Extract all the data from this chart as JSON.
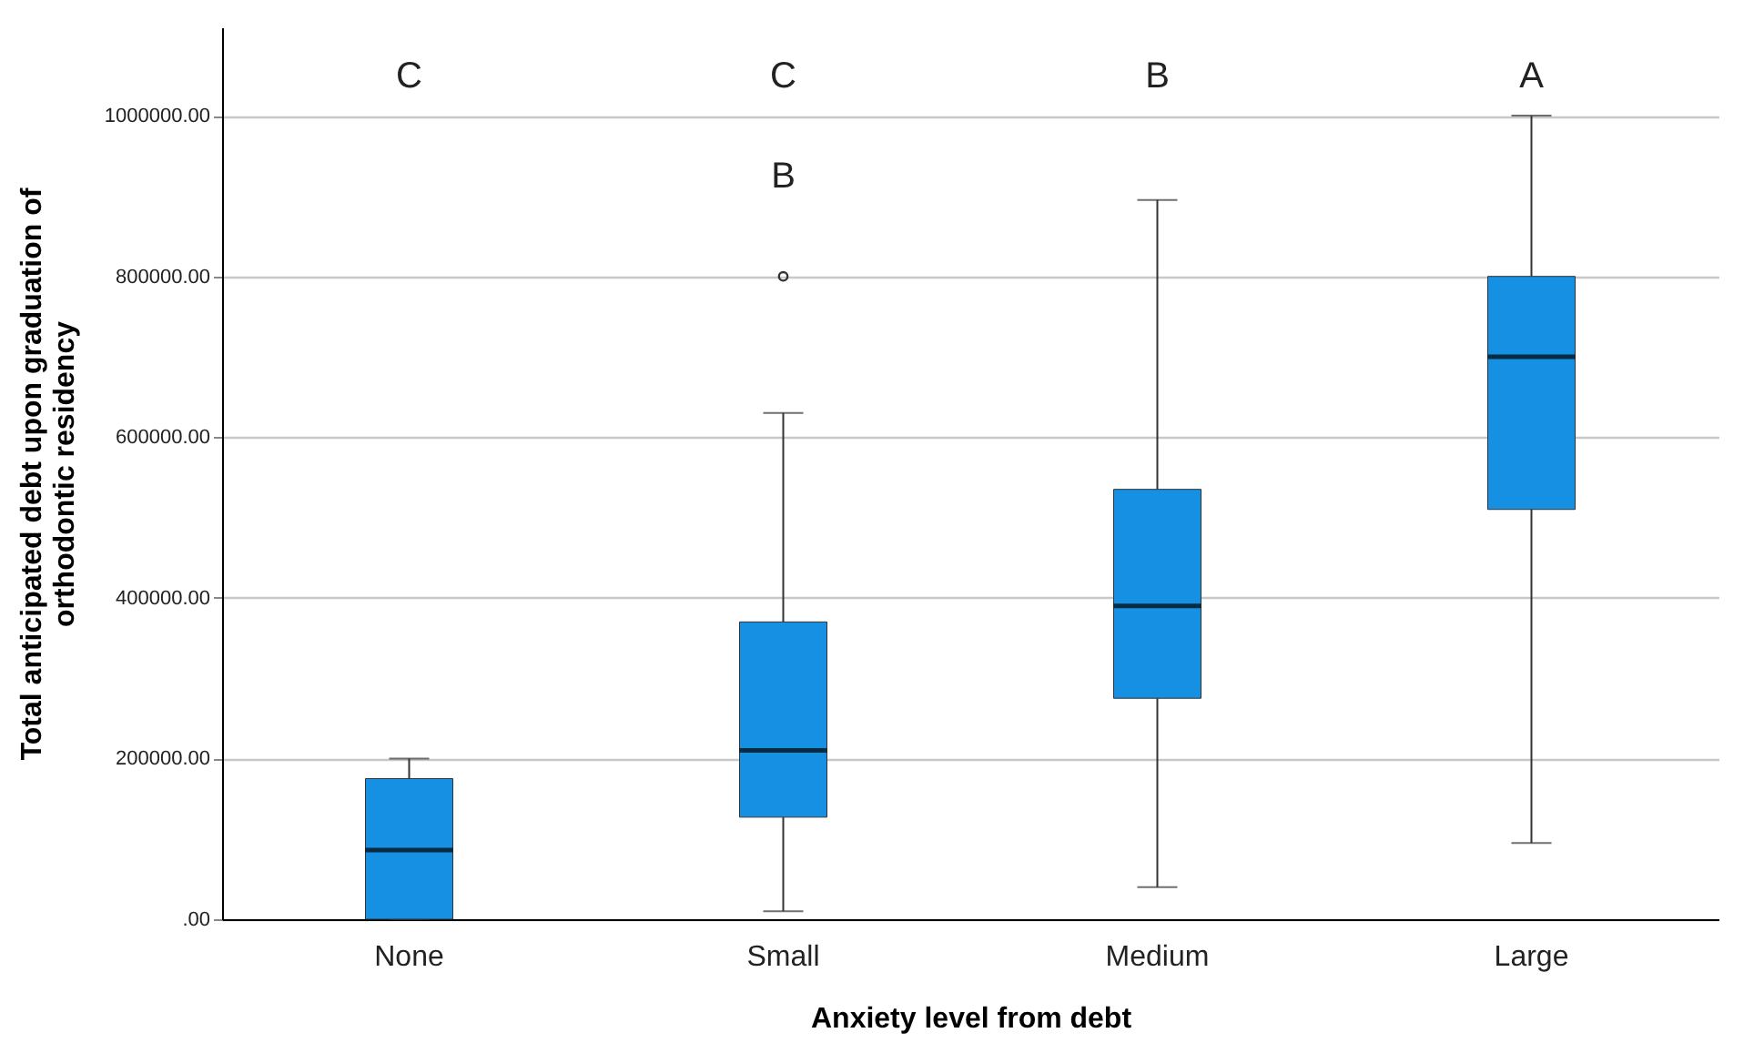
{
  "chart_data": {
    "type": "box",
    "xlabel": "Anxiety level from debt",
    "ylabel": "Total anticipated debt upon graduation of\northodontic residency",
    "categories": [
      "None",
      "Small",
      "Medium",
      "Large"
    ],
    "series": [
      {
        "color": "#1590e2",
        "boxes": [
          {
            "low": 0,
            "q1": 0,
            "median": 86000,
            "q3": 175000,
            "high": 200000
          },
          {
            "low": 10000,
            "q1": 127000,
            "median": 210000,
            "q3": 370000,
            "high": 630000,
            "outliers": [
              800000
            ]
          },
          {
            "low": 40000,
            "q1": 275000,
            "median": 390000,
            "q3": 535000,
            "high": 895000
          },
          {
            "low": 95000,
            "q1": 510000,
            "median": 700000,
            "q3": 800000,
            "high": 1000000
          }
        ]
      }
    ],
    "ylim": [
      0,
      1110000
    ],
    "yticks": [
      {
        "value": 0,
        "label": ".00"
      },
      {
        "value": 200000,
        "label": "200000.00"
      },
      {
        "value": 400000,
        "label": "400000.00"
      },
      {
        "value": 600000,
        "label": "600000.00"
      },
      {
        "value": 800000,
        "label": "800000.00"
      },
      {
        "value": 1000000,
        "label": "1000000.00"
      }
    ],
    "grid": "y",
    "annotations": [
      "C",
      "C",
      "B",
      "B",
      "A"
    ]
  }
}
